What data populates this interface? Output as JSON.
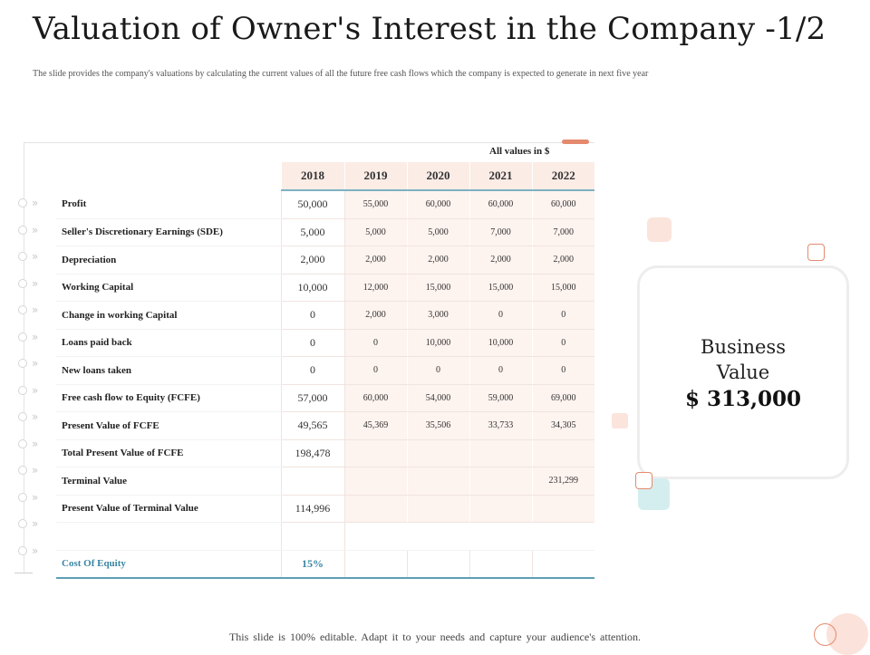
{
  "slide": {
    "title": "Valuation of Owner's Interest in the Company -1/2",
    "subtitle": "The slide provides the company's valuations by calculating the current values of all the future free cash flows which the company is expected to generate in next five year",
    "values_note": "All values in $",
    "footer": "This slide is 100% editable. Adapt it to your needs and capture your audience's attention."
  },
  "table": {
    "years": [
      "2018",
      "2019",
      "2020",
      "2021",
      "2022"
    ],
    "rows": [
      {
        "label": "Profit",
        "values": [
          "50,000",
          "55,000",
          "60,000",
          "60,000",
          "60,000"
        ]
      },
      {
        "label": "Seller's Discretionary Earnings (SDE)",
        "values": [
          "5,000",
          "5,000",
          "5,000",
          "7,000",
          "7,000"
        ]
      },
      {
        "label": "Depreciation",
        "values": [
          "2,000",
          "2,000",
          "2,000",
          "2,000",
          "2,000"
        ]
      },
      {
        "label": "Working Capital",
        "values": [
          "10,000",
          "12,000",
          "15,000",
          "15,000",
          "15,000"
        ]
      },
      {
        "label": "Change in working Capital",
        "values": [
          "0",
          "2,000",
          "3,000",
          "0",
          "0"
        ]
      },
      {
        "label": "Loans paid back",
        "values": [
          "0",
          "0",
          "10,000",
          "10,000",
          "0"
        ]
      },
      {
        "label": "New loans taken",
        "values": [
          "0",
          "0",
          "0",
          "0",
          "0"
        ]
      },
      {
        "label": "Free cash flow to Equity (FCFE)",
        "values": [
          "57,000",
          "60,000",
          "54,000",
          "59,000",
          "69,000"
        ]
      },
      {
        "label": "Present Value of FCFE",
        "values": [
          "49,565",
          "45,369",
          "35,506",
          "33,733",
          "34,305"
        ]
      },
      {
        "label": "Total Present Value of FCFE",
        "values": [
          "198,478",
          "",
          "",
          "",
          ""
        ]
      },
      {
        "label": "Terminal Value",
        "values": [
          "",
          "",
          "",
          "",
          "231,299"
        ]
      },
      {
        "label": "Present Value of Terminal Value",
        "values": [
          "114,996",
          "",
          "",
          "",
          ""
        ]
      },
      {
        "label": "",
        "values": [
          "",
          "",
          "",
          "",
          ""
        ]
      }
    ],
    "cost_of_equity": {
      "label": "Cost Of Equity",
      "value": "15%"
    }
  },
  "business_value": {
    "label": "Business Value",
    "value": "$ 313,000"
  },
  "colors": {
    "accent_orange": "#e58a6e",
    "accent_teal": "#5e9fb3",
    "cell_shade": "#fdf3ef",
    "header_shade": "#fbece6"
  }
}
